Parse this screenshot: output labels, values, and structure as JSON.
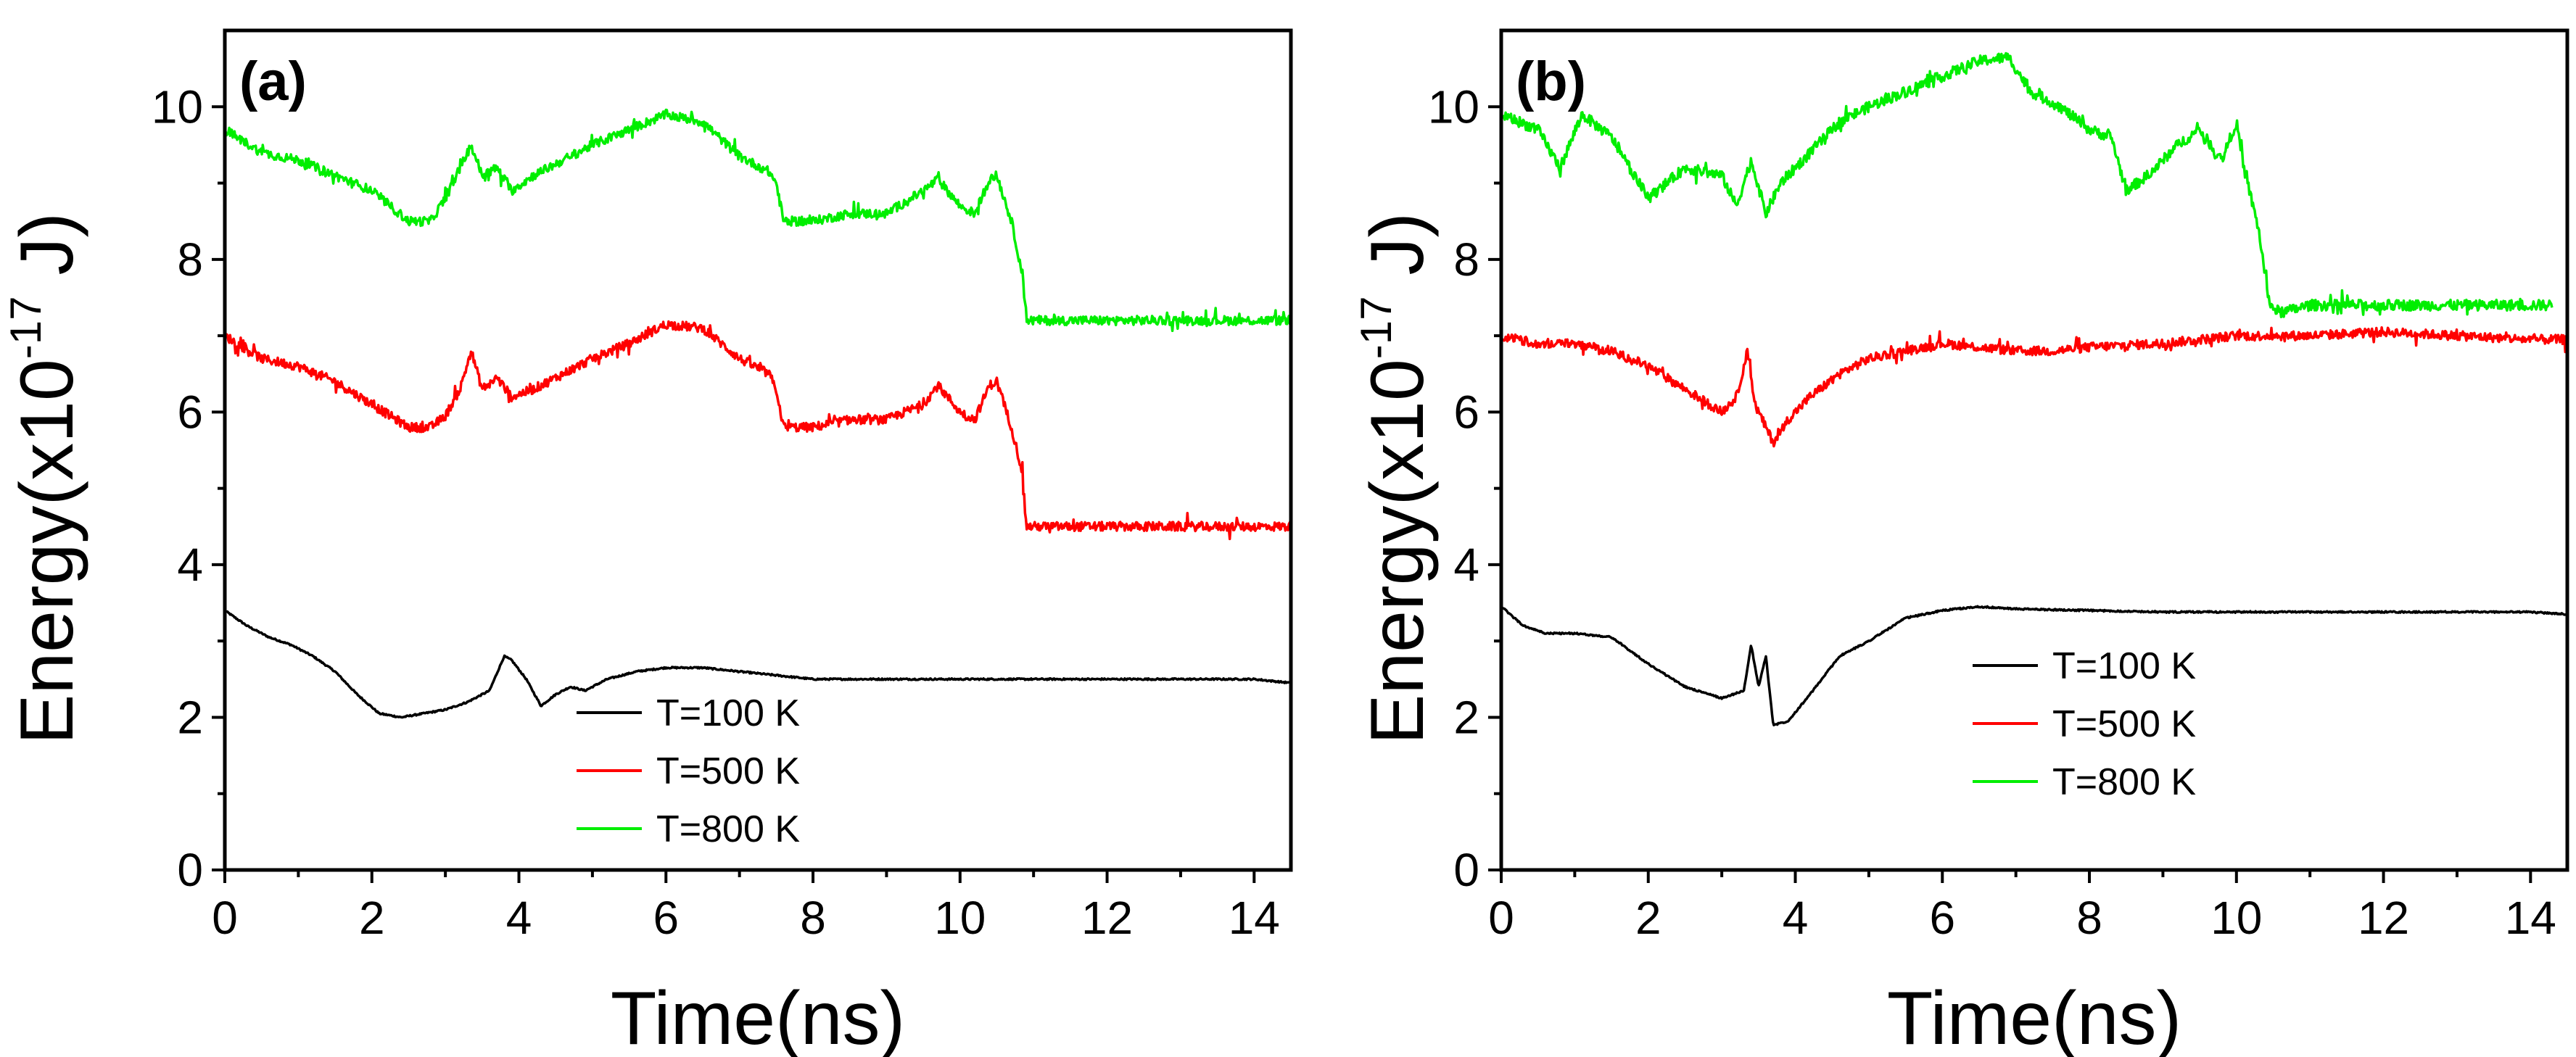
{
  "chart_data": [
    {
      "type": "line",
      "panel_label": "(a)",
      "xlabel": "Time(ns)",
      "ylabel": {
        "base": "Energy(x10",
        "exponent": "-17",
        "unit": " J)"
      },
      "xlim": [
        0,
        14.5
      ],
      "ylim": [
        0,
        11
      ],
      "xticks": [
        "0",
        "2",
        "4",
        "6",
        "8",
        "10",
        "12",
        "14"
      ],
      "xtick_values": [
        0,
        2,
        4,
        6,
        8,
        10,
        12,
        14
      ],
      "yticks": [
        "0",
        "2",
        "4",
        "6",
        "8",
        "10"
      ],
      "ytick_values": [
        0,
        2,
        4,
        6,
        8,
        10
      ],
      "legend_position": "bottom-center",
      "series": [
        {
          "name": "T=100 K",
          "color": "#000000",
          "noise": 0.01,
          "x": [
            0,
            0.3,
            0.6,
            0.9,
            1.2,
            1.5,
            1.8,
            2.1,
            2.4,
            2.7,
            3.0,
            3.3,
            3.6,
            3.8,
            3.9,
            4.1,
            4.3,
            4.5,
            4.7,
            4.9,
            5.2,
            5.6,
            6.0,
            6.5,
            7.0,
            7.5,
            8.0,
            9.0,
            10.0,
            11.0,
            12.0,
            13.0,
            14.0,
            14.5
          ],
          "y": [
            3.4,
            3.2,
            3.05,
            2.95,
            2.8,
            2.6,
            2.3,
            2.05,
            2.0,
            2.05,
            2.1,
            2.2,
            2.35,
            2.8,
            2.75,
            2.5,
            2.15,
            2.3,
            2.4,
            2.35,
            2.5,
            2.6,
            2.65,
            2.65,
            2.6,
            2.55,
            2.5,
            2.5,
            2.5,
            2.5,
            2.5,
            2.5,
            2.5,
            2.45
          ]
        },
        {
          "name": "T=500 K",
          "color": "#ff0000",
          "noise": 0.06,
          "x": [
            0,
            0.5,
            1.0,
            1.5,
            2.0,
            2.5,
            2.8,
            3.0,
            3.2,
            3.35,
            3.5,
            3.7,
            3.9,
            4.2,
            4.6,
            5.0,
            5.5,
            6.0,
            6.5,
            7.0,
            7.4,
            7.5,
            7.6,
            8.0,
            8.5,
            9.0,
            9.5,
            9.7,
            10.0,
            10.2,
            10.4,
            10.5,
            10.7,
            10.85,
            10.9,
            11.2,
            12.0,
            13.0,
            14.0,
            14.5
          ],
          "y": [
            7.0,
            6.7,
            6.6,
            6.4,
            6.1,
            5.8,
            5.8,
            5.95,
            6.3,
            6.8,
            6.3,
            6.45,
            6.2,
            6.3,
            6.5,
            6.7,
            6.9,
            7.15,
            7.1,
            6.7,
            6.5,
            6.3,
            5.8,
            5.8,
            5.9,
            5.9,
            6.1,
            6.35,
            6.0,
            5.9,
            6.35,
            6.4,
            5.8,
            5.2,
            4.5,
            4.5,
            4.5,
            4.5,
            4.5,
            4.5
          ]
        },
        {
          "name": "T=800 K",
          "color": "#00ee00",
          "noise": 0.06,
          "x": [
            0,
            0.5,
            1.0,
            1.5,
            2.0,
            2.5,
            2.8,
            3.0,
            3.2,
            3.35,
            3.5,
            3.7,
            3.9,
            4.2,
            4.6,
            5.0,
            5.5,
            6.0,
            6.5,
            7.0,
            7.4,
            7.5,
            7.6,
            8.0,
            8.5,
            9.0,
            9.5,
            9.7,
            10.0,
            10.2,
            10.4,
            10.5,
            10.7,
            10.85,
            10.9,
            11.2,
            12.0,
            13.0,
            14.0,
            14.5
          ],
          "y": [
            9.7,
            9.4,
            9.3,
            9.1,
            8.9,
            8.5,
            8.5,
            8.8,
            9.2,
            9.5,
            9.1,
            9.2,
            8.9,
            9.1,
            9.3,
            9.5,
            9.7,
            9.9,
            9.8,
            9.35,
            9.15,
            9.0,
            8.5,
            8.5,
            8.6,
            8.6,
            8.9,
            9.05,
            8.7,
            8.6,
            9.05,
            9.1,
            8.5,
            7.8,
            7.2,
            7.2,
            7.2,
            7.2,
            7.2,
            7.2
          ]
        }
      ]
    },
    {
      "type": "line",
      "panel_label": "(b)",
      "xlabel": "Time(ns)",
      "ylabel": {
        "base": "Energy(x10",
        "exponent": "-17",
        "unit": " J)"
      },
      "xlim": [
        0,
        14.5
      ],
      "ylim": [
        0,
        11
      ],
      "xticks": [
        "0",
        "2",
        "4",
        "6",
        "8",
        "10",
        "12",
        "14"
      ],
      "xtick_values": [
        0,
        2,
        4,
        6,
        8,
        10,
        12,
        14
      ],
      "yticks": [
        "0",
        "2",
        "4",
        "6",
        "8",
        "10"
      ],
      "ytick_values": [
        0,
        2,
        4,
        6,
        8,
        10
      ],
      "legend_position": "right-center",
      "series": [
        {
          "name": "T=100 K",
          "color": "#000000",
          "noise": 0.01,
          "x": [
            0,
            0.3,
            0.6,
            1.0,
            1.5,
            2.0,
            2.5,
            3.0,
            3.3,
            3.4,
            3.5,
            3.6,
            3.7,
            3.9,
            4.2,
            4.6,
            5.0,
            5.5,
            6.0,
            6.5,
            7.0,
            8.0,
            9.0,
            10.0,
            11.0,
            12.0,
            13.0,
            14.0,
            14.5
          ],
          "y": [
            3.45,
            3.2,
            3.1,
            3.1,
            3.05,
            2.7,
            2.4,
            2.25,
            2.35,
            2.95,
            2.4,
            2.8,
            1.9,
            1.95,
            2.3,
            2.8,
            3.0,
            3.3,
            3.4,
            3.45,
            3.42,
            3.4,
            3.38,
            3.38,
            3.38,
            3.38,
            3.38,
            3.38,
            3.35
          ]
        },
        {
          "name": "T=500 K",
          "color": "#ff0000",
          "noise": 0.06,
          "x": [
            0,
            0.5,
            1.0,
            1.5,
            2.0,
            2.5,
            3.0,
            3.2,
            3.35,
            3.45,
            3.6,
            3.7,
            3.9,
            4.2,
            4.6,
            5.0,
            5.5,
            6.0,
            6.5,
            7.0,
            7.5,
            8.0,
            9.0,
            10.0,
            11.0,
            12.0,
            13.0,
            14.0,
            14.5
          ],
          "y": [
            7.0,
            6.9,
            6.9,
            6.8,
            6.6,
            6.3,
            6.0,
            6.2,
            6.8,
            6.1,
            5.8,
            5.6,
            5.9,
            6.2,
            6.5,
            6.7,
            6.8,
            6.9,
            6.85,
            6.8,
            6.8,
            6.85,
            6.9,
            7.0,
            7.0,
            7.05,
            7.0,
            6.95,
            6.95
          ]
        },
        {
          "name": "T=800 K",
          "color": "#00ee00",
          "noise": 0.07,
          "x": [
            0,
            0.5,
            0.8,
            1.1,
            1.5,
            2.0,
            2.5,
            3.0,
            3.2,
            3.4,
            3.6,
            3.8,
            4.2,
            4.6,
            5.0,
            5.5,
            6.0,
            6.5,
            6.9,
            7.2,
            7.6,
            8.0,
            8.3,
            8.5,
            8.8,
            9.2,
            9.5,
            9.8,
            10.0,
            10.1,
            10.3,
            10.45,
            10.6,
            11.0,
            12.0,
            13.0,
            14.0,
            14.3
          ],
          "y": [
            9.9,
            9.7,
            9.2,
            9.9,
            9.6,
            8.8,
            9.2,
            9.1,
            8.7,
            9.3,
            8.6,
            9.0,
            9.4,
            9.8,
            10.0,
            10.2,
            10.4,
            10.6,
            10.65,
            10.2,
            10.0,
            9.7,
            9.6,
            8.9,
            9.1,
            9.5,
            9.7,
            9.3,
            9.8,
            9.2,
            8.4,
            7.4,
            7.3,
            7.4,
            7.4,
            7.4,
            7.4,
            7.4
          ]
        }
      ]
    }
  ]
}
